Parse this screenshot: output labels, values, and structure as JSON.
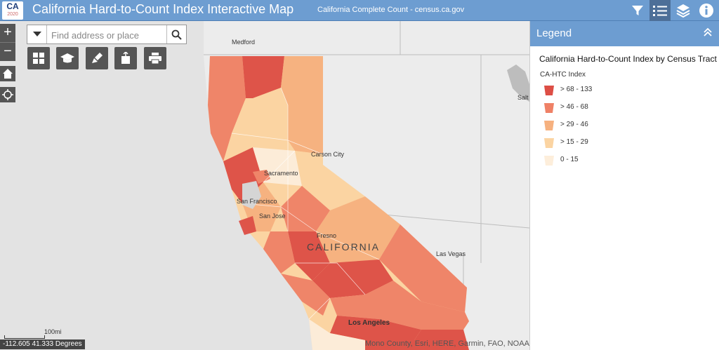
{
  "header": {
    "logo_text": "CA",
    "logo_year": "2020",
    "title": "California Hard-to-Count Index Interactive Map",
    "subtitle": "California Complete Count - census.ca.gov",
    "buttons": [
      "filter-icon",
      "legend-list-icon",
      "layers-icon",
      "info-icon"
    ],
    "active_button": "legend-list-icon"
  },
  "map": {
    "zoom_in": "+",
    "zoom_out": "−",
    "search": {
      "placeholder": "Find address or place",
      "value": ""
    },
    "toolbar": [
      "basemap-gallery-icon",
      "education-icon",
      "draw-icon",
      "share-icon",
      "print-icon"
    ],
    "labels": {
      "medford": "Medford",
      "carson_city": "Carson City",
      "sacramento": "Sacramento",
      "san_francisco": "San Francisco",
      "san_jose": "San Jose",
      "fresno": "Fresno",
      "california": "CALIFORNIA",
      "las_vegas": "Las Vegas",
      "los_angeles": "Los Angeles",
      "salt": "Salt"
    },
    "scale_label": "100mi",
    "coordinates": "-112.605 41.333 Degrees",
    "attribution": "Mono County, Esri, HERE, Garmin, FAO, NOAA, U"
  },
  "legend": {
    "header": "Legend",
    "layer_title": "California Hard-to-Count Index by Census Tract",
    "field": "CA-HTC Index",
    "items": [
      {
        "label": "> 68 - 133",
        "color": "#dd4e45"
      },
      {
        "label": "> 46 - 68",
        "color": "#ef8166"
      },
      {
        "label": "> 29 - 46",
        "color": "#f6b17f"
      },
      {
        "label": "> 15 - 29",
        "color": "#fbd4a2"
      },
      {
        "label": "0 - 15",
        "color": "#fdeedb"
      }
    ]
  }
}
